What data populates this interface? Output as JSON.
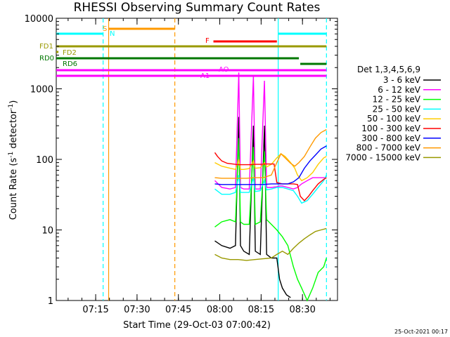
{
  "chart_data": {
    "type": "line",
    "title": "RHESSI Observing Summary Count Rates",
    "xlabel": "Start Time (29-Oct-03 07:00:42)",
    "ylabel": "Count Rate (s⁻¹ detector⁻¹)",
    "ylabel_main": "Count Rate (s",
    "ylabel_sup1": "-1",
    "ylabel_mid": " detector",
    "ylabel_sup2": "-1",
    "ylabel_end": ")",
    "yscale": "log",
    "ylim": [
      1,
      10000
    ],
    "xlim_minutes": [
      0,
      102
    ],
    "xticks": [
      {
        "label": "07:15",
        "min": 14.3
      },
      {
        "label": "07:30",
        "min": 29.3
      },
      {
        "label": "07:45",
        "min": 44.3
      },
      {
        "label": "08:00",
        "min": 59.3
      },
      {
        "label": "08:15",
        "min": 74.3
      },
      {
        "label": "08:30",
        "min": 89.3
      }
    ],
    "yticks": [
      {
        "label": "1",
        "v": 1
      },
      {
        "label": "10",
        "v": 10
      },
      {
        "label": "100",
        "v": 100
      },
      {
        "label": "1000",
        "v": 1000
      },
      {
        "label": "10000",
        "v": 10000
      }
    ],
    "legend_title": "Det 1,3,4,5,6,9",
    "legend_position": "right",
    "series": [
      {
        "name": "3 - 6 keV",
        "color": "#000000",
        "points": [
          [
            57.5,
            7
          ],
          [
            60,
            6
          ],
          [
            63,
            5.5
          ],
          [
            65,
            6
          ],
          [
            66.2,
            400
          ],
          [
            66.8,
            6
          ],
          [
            68,
            5
          ],
          [
            70,
            4.5
          ],
          [
            71.5,
            300
          ],
          [
            72.2,
            5
          ],
          [
            74,
            4.5
          ],
          [
            75.5,
            300
          ],
          [
            76.3,
            4.5
          ],
          [
            78,
            4
          ],
          [
            80,
            4
          ],
          [
            81,
            2
          ],
          [
            82,
            1.5
          ],
          [
            83.5,
            1.2
          ],
          [
            85,
            1.1
          ]
        ]
      },
      {
        "name": "6 - 12 keV",
        "color": "#ff00ff",
        "points": [
          [
            57.5,
            50
          ],
          [
            60,
            40
          ],
          [
            63,
            38
          ],
          [
            65,
            40
          ],
          [
            66.2,
            1700
          ],
          [
            66.8,
            40
          ],
          [
            68,
            38
          ],
          [
            70,
            38
          ],
          [
            71.5,
            1500
          ],
          [
            72.2,
            38
          ],
          [
            74,
            38
          ],
          [
            75.5,
            1300
          ],
          [
            76.3,
            40
          ],
          [
            78,
            40
          ],
          [
            80,
            41
          ],
          [
            81,
            42
          ],
          [
            82,
            42
          ],
          [
            84,
            40
          ],
          [
            86,
            38
          ],
          [
            87.5,
            40
          ],
          [
            89,
            45
          ],
          [
            91,
            50
          ],
          [
            93,
            55
          ],
          [
            95,
            55
          ],
          [
            97,
            55
          ],
          [
            98,
            55
          ]
        ]
      },
      {
        "name": "12 - 25 keV",
        "color": "#00ff00",
        "points": [
          [
            57.5,
            11
          ],
          [
            60,
            13
          ],
          [
            63,
            14
          ],
          [
            65,
            13
          ],
          [
            66.2,
            200
          ],
          [
            66.8,
            13
          ],
          [
            68,
            12
          ],
          [
            70,
            12
          ],
          [
            71.5,
            150
          ],
          [
            72.2,
            12
          ],
          [
            74,
            13
          ],
          [
            75.5,
            130
          ],
          [
            76.3,
            14
          ],
          [
            78,
            12
          ],
          [
            80,
            10
          ],
          [
            82,
            8
          ],
          [
            84,
            6
          ],
          [
            86,
            3
          ],
          [
            87.5,
            2
          ],
          [
            89,
            1.5
          ],
          [
            91,
            1
          ],
          [
            93,
            1.5
          ],
          [
            95,
            2.5
          ],
          [
            97,
            3
          ],
          [
            98,
            4
          ]
        ]
      },
      {
        "name": "25 - 50 keV",
        "color": "#00ffff",
        "points": [
          [
            57.5,
            38
          ],
          [
            60,
            32
          ],
          [
            63,
            32
          ],
          [
            65,
            34
          ],
          [
            66.2,
            60
          ],
          [
            66.8,
            34
          ],
          [
            68,
            34
          ],
          [
            70,
            34
          ],
          [
            71.5,
            55
          ],
          [
            72.2,
            35
          ],
          [
            74,
            36
          ],
          [
            75.5,
            50
          ],
          [
            76.3,
            37
          ],
          [
            78,
            38
          ],
          [
            80,
            40
          ],
          [
            82,
            40
          ],
          [
            84,
            38
          ],
          [
            86,
            36
          ],
          [
            87.5,
            30
          ],
          [
            89,
            24
          ],
          [
            91,
            26
          ],
          [
            93,
            32
          ],
          [
            95,
            40
          ],
          [
            97,
            50
          ],
          [
            98,
            60
          ]
        ]
      },
      {
        "name": "50 - 100 keV",
        "color": "#ffcc00",
        "points": [
          [
            57.5,
            90
          ],
          [
            60,
            80
          ],
          [
            63,
            75
          ],
          [
            65,
            72
          ],
          [
            66.2,
            100
          ],
          [
            66.8,
            72
          ],
          [
            68,
            72
          ],
          [
            70,
            74
          ],
          [
            71.5,
            95
          ],
          [
            72.2,
            75
          ],
          [
            74,
            76
          ],
          [
            75.5,
            90
          ],
          [
            76.3,
            78
          ],
          [
            78,
            85
          ],
          [
            80,
            105
          ],
          [
            81.5,
            120
          ],
          [
            83,
            110
          ],
          [
            85,
            90
          ],
          [
            86.5,
            75
          ],
          [
            87.5,
            60
          ],
          [
            89,
            50
          ],
          [
            91,
            55
          ],
          [
            93,
            65
          ],
          [
            95,
            85
          ],
          [
            97,
            105
          ],
          [
            98,
            110
          ]
        ]
      },
      {
        "name": "100 - 300 keV",
        "color": "#ff0000",
        "points": [
          [
            57.5,
            125
          ],
          [
            58.5,
            110
          ],
          [
            60,
            95
          ],
          [
            62,
            88
          ],
          [
            64,
            86
          ],
          [
            66,
            84
          ],
          [
            66.2,
            84
          ],
          [
            68,
            84
          ],
          [
            70,
            84
          ],
          [
            72,
            85
          ],
          [
            74,
            85
          ],
          [
            76,
            86
          ],
          [
            78,
            86
          ],
          [
            79,
            86
          ],
          [
            80,
            47
          ],
          [
            82,
            45
          ],
          [
            84,
            45
          ],
          [
            86,
            45
          ],
          [
            87.5,
            44
          ],
          [
            88.5,
            30
          ],
          [
            90,
            26
          ],
          [
            91.5,
            30
          ],
          [
            93,
            36
          ],
          [
            95,
            45
          ],
          [
            97,
            52
          ],
          [
            98,
            55
          ]
        ]
      },
      {
        "name": "300 - 800 keV",
        "color": "#0000ff",
        "points": [
          [
            57.5,
            45
          ],
          [
            60,
            44
          ],
          [
            63,
            44
          ],
          [
            66,
            44
          ],
          [
            69,
            44
          ],
          [
            72,
            44
          ],
          [
            75,
            44
          ],
          [
            78,
            45
          ],
          [
            80,
            45
          ],
          [
            82,
            45
          ],
          [
            84,
            45
          ],
          [
            86,
            48
          ],
          [
            88,
            55
          ],
          [
            90,
            75
          ],
          [
            92,
            95
          ],
          [
            94,
            115
          ],
          [
            96,
            140
          ],
          [
            98,
            155
          ]
        ]
      },
      {
        "name": "800 - 7000 keV",
        "color": "#ff9900",
        "points": [
          [
            57.5,
            55
          ],
          [
            60,
            54
          ],
          [
            63,
            54
          ],
          [
            66,
            54
          ],
          [
            69,
            54
          ],
          [
            72,
            55
          ],
          [
            75,
            55
          ],
          [
            78,
            60
          ],
          [
            80,
            90
          ],
          [
            81.5,
            120
          ],
          [
            83,
            105
          ],
          [
            85,
            88
          ],
          [
            86.5,
            80
          ],
          [
            88,
            90
          ],
          [
            90,
            110
          ],
          [
            92,
            150
          ],
          [
            94,
            200
          ],
          [
            96,
            240
          ],
          [
            98,
            265
          ]
        ]
      },
      {
        "name": "7000 - 15000 keV",
        "color": "#999900",
        "points": [
          [
            57.5,
            4.5
          ],
          [
            60,
            4
          ],
          [
            63,
            3.8
          ],
          [
            66,
            3.8
          ],
          [
            69,
            3.7
          ],
          [
            72,
            3.8
          ],
          [
            75,
            3.9
          ],
          [
            78,
            4
          ],
          [
            80,
            4.5
          ],
          [
            82,
            5
          ],
          [
            84,
            4.5
          ],
          [
            86,
            5.5
          ],
          [
            88,
            6.5
          ],
          [
            90,
            7.5
          ],
          [
            92,
            8.5
          ],
          [
            94,
            9.5
          ],
          [
            96,
            10
          ],
          [
            98,
            10.5
          ]
        ]
      }
    ],
    "flag_bars": [
      {
        "label": "S",
        "color": "#ff9900",
        "start": 19,
        "end": 43
      },
      {
        "label": "N",
        "color": "#00ffff",
        "start": 0,
        "end": 17,
        "end2_start": 80.5,
        "end2_end": 98
      },
      {
        "label": "F",
        "color": "#ff0000",
        "start": 57,
        "end": 80
      },
      {
        "label": "FD1",
        "color": "#999900",
        "start": 0,
        "end": 98
      },
      {
        "label": "FD2",
        "color": "#999900",
        "start": 0,
        "end": 0.8
      },
      {
        "label": "RD0",
        "color": "#007700",
        "start": 0,
        "end": 88
      },
      {
        "label": "RD6",
        "color": "#007700",
        "start": 88.5,
        "end": 98
      },
      {
        "label": "AO",
        "color": "#ff00ff",
        "start": 0,
        "end": 98
      },
      {
        "label": "A1",
        "color": "#ff00ff",
        "start": 0,
        "end": 98
      }
    ],
    "vlines": [
      {
        "min": 17,
        "color": "#00ffff",
        "style": "dashed"
      },
      {
        "min": 19,
        "color": "#ff9900",
        "style": "solid"
      },
      {
        "min": 43,
        "color": "#ff9900",
        "style": "dashed"
      },
      {
        "min": 80.5,
        "color": "#00ffff",
        "style": "solid"
      },
      {
        "min": 98,
        "color": "#00ffff",
        "style": "dashed"
      }
    ]
  },
  "footer": {
    "timestamp": "25-Oct-2021 00:17"
  }
}
